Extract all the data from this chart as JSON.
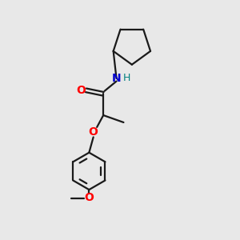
{
  "bg_color": "#e8e8e8",
  "bond_color": "#1a1a1a",
  "O_color": "#ff0000",
  "N_color": "#0000cc",
  "H_color": "#008080",
  "line_width": 1.6,
  "figsize": [
    3.0,
    3.0
  ],
  "dpi": 100,
  "xlim": [
    0,
    10
  ],
  "ylim": [
    0,
    10
  ]
}
